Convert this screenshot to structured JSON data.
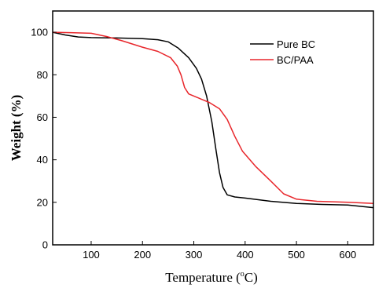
{
  "chart_data": {
    "type": "line",
    "xlabel_main": "Temperature (",
    "xlabel_unit_sup": "o",
    "xlabel_unit": "C)",
    "ylabel": "Weight (%)",
    "xlim": [
      25,
      650
    ],
    "ylim": [
      0,
      110
    ],
    "xticks": [
      100,
      200,
      300,
      400,
      500,
      600
    ],
    "yticks": [
      0,
      20,
      40,
      60,
      80,
      100
    ],
    "grid": false,
    "legend_position": "top-right",
    "series": [
      {
        "name": "Pure BC",
        "color": "#000000",
        "points": [
          [
            25,
            100
          ],
          [
            50,
            98.7
          ],
          [
            75,
            97.8
          ],
          [
            100,
            97.5
          ],
          [
            150,
            97.3
          ],
          [
            200,
            97.0
          ],
          [
            230,
            96.5
          ],
          [
            250,
            95.5
          ],
          [
            270,
            92.5
          ],
          [
            290,
            88
          ],
          [
            305,
            83
          ],
          [
            315,
            78
          ],
          [
            325,
            70
          ],
          [
            335,
            58
          ],
          [
            343,
            45
          ],
          [
            350,
            34
          ],
          [
            357,
            27
          ],
          [
            365,
            23.5
          ],
          [
            380,
            22.5
          ],
          [
            400,
            22
          ],
          [
            450,
            20.5
          ],
          [
            500,
            19.5
          ],
          [
            550,
            19
          ],
          [
            600,
            18.7
          ],
          [
            650,
            17.5
          ]
        ]
      },
      {
        "name": "BC/PAA",
        "color": "#e8262b",
        "points": [
          [
            25,
            100
          ],
          [
            60,
            99.8
          ],
          [
            100,
            99.5
          ],
          [
            130,
            98
          ],
          [
            160,
            96
          ],
          [
            200,
            93
          ],
          [
            230,
            91
          ],
          [
            255,
            88
          ],
          [
            268,
            84
          ],
          [
            275,
            80
          ],
          [
            282,
            74
          ],
          [
            290,
            71
          ],
          [
            310,
            69
          ],
          [
            330,
            67
          ],
          [
            350,
            64
          ],
          [
            365,
            59
          ],
          [
            380,
            51
          ],
          [
            395,
            44
          ],
          [
            420,
            37
          ],
          [
            450,
            30
          ],
          [
            475,
            24
          ],
          [
            500,
            21.5
          ],
          [
            540,
            20.5
          ],
          [
            600,
            20
          ],
          [
            650,
            19.5
          ]
        ]
      }
    ]
  }
}
